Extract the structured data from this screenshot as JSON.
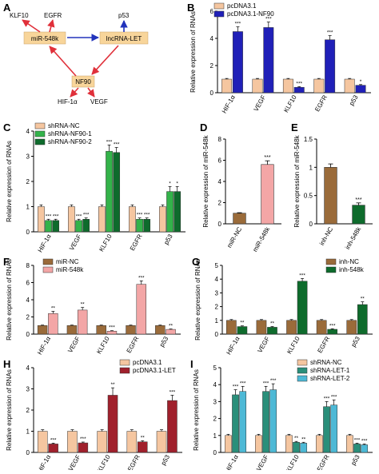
{
  "colors": {
    "beige": "#F5C6A0",
    "navy": "#2020B8",
    "green": "#33B34A",
    "darkgreen": "#0E6B2C",
    "brown": "#9A6B3A",
    "pink": "#F3A6A6",
    "maroon": "#A0202C",
    "teal": "#2A8F7A",
    "lightblue": "#4DB9D6",
    "box": "#F8D59A",
    "arrowRed": "#E0303A",
    "arrowBlue": "#2233BB"
  },
  "diagram": {
    "panel_label": "A",
    "nodes": {
      "mir": "miR-548k",
      "lnc": "lncRNA-LET",
      "nf90": "NF90"
    },
    "targets_top_mir": [
      "KLF10",
      "EGFR"
    ],
    "target_top_lnc": "p53",
    "targets_bottom": [
      "HIF-1α",
      "VEGF"
    ]
  },
  "chart_data": [
    {
      "panel": "B",
      "type": "bar",
      "ylabel": "Relative expression of RNAs",
      "categories": [
        "HIF-1α",
        "VEGF",
        "KLF10",
        "EGFR",
        "p53"
      ],
      "ylim": [
        0,
        6
      ],
      "yticks": [
        0,
        2,
        4,
        6
      ],
      "legend_position": "top-right",
      "series": [
        {
          "name": "pcDNA3.1",
          "color": "beige",
          "values": [
            1.0,
            1.0,
            1.0,
            1.0,
            1.0
          ],
          "err": [
            0.05,
            0.05,
            0.05,
            0.05,
            0.05
          ],
          "sig": [
            "",
            "",
            "",
            "",
            ""
          ]
        },
        {
          "name": "pcDNA3.1-NF90",
          "color": "navy",
          "values": [
            4.5,
            4.8,
            0.4,
            3.9,
            0.55
          ],
          "err": [
            0.35,
            0.4,
            0.05,
            0.3,
            0.05
          ],
          "sig": [
            "***",
            "***",
            "***",
            "***",
            "*"
          ]
        }
      ]
    },
    {
      "panel": "C",
      "type": "bar",
      "ylabel": "Relative expression of RNAs",
      "categories": [
        "HIF-1α",
        "VEGF",
        "KLF10",
        "EGFR",
        "p53"
      ],
      "ylim": [
        0,
        4
      ],
      "yticks": [
        0,
        1,
        2,
        3,
        4
      ],
      "legend_position": "top-left",
      "series": [
        {
          "name": "shRNA-NC",
          "color": "beige",
          "values": [
            1.0,
            1.0,
            1.0,
            1.0,
            1.0
          ],
          "err": [
            0.07,
            0.07,
            0.07,
            0.07,
            0.07
          ],
          "sig": [
            "",
            "",
            "",
            "",
            ""
          ]
        },
        {
          "name": "shRNA-NF90-1",
          "color": "green",
          "values": [
            0.45,
            0.45,
            3.2,
            0.5,
            1.6
          ],
          "err": [
            0.05,
            0.05,
            0.25,
            0.05,
            0.2
          ],
          "sig": [
            "***",
            "***",
            "***",
            "***",
            "*"
          ]
        },
        {
          "name": "shRNA-NF90-2",
          "color": "darkgreen",
          "values": [
            0.45,
            0.5,
            3.15,
            0.5,
            1.6
          ],
          "err": [
            0.05,
            0.05,
            0.2,
            0.05,
            0.2
          ],
          "sig": [
            "***",
            "***",
            "***",
            "***",
            "*"
          ]
        }
      ]
    },
    {
      "panel": "D",
      "type": "bar",
      "ylabel": "Relative expression of miR-548k",
      "categories": [
        "miR-NC",
        "miR-548k"
      ],
      "ylim": [
        0,
        8
      ],
      "yticks": [
        0,
        2,
        4,
        6,
        8
      ],
      "single": true,
      "series": [
        {
          "name": "",
          "colors": [
            "brown",
            "pink"
          ],
          "values": [
            1.0,
            5.6
          ],
          "err": [
            0.05,
            0.35
          ],
          "sig": [
            "",
            "***"
          ]
        }
      ]
    },
    {
      "panel": "E",
      "type": "bar",
      "ylabel": "Relative expression of miR-548k",
      "categories": [
        "inh-NC",
        "inh-548k"
      ],
      "ylim": [
        0,
        1.5
      ],
      "yticks": [
        0,
        0.5,
        1.0,
        1.5
      ],
      "single": true,
      "series": [
        {
          "name": "",
          "colors": [
            "brown",
            "darkgreen"
          ],
          "values": [
            1.0,
            0.33
          ],
          "err": [
            0.06,
            0.04
          ],
          "sig": [
            "",
            "***"
          ]
        }
      ]
    },
    {
      "panel": "F",
      "type": "bar",
      "ylabel": "Relative expression of RNAs",
      "categories": [
        "HIF-1α",
        "VEGF",
        "KLF10",
        "EGFR",
        "p53"
      ],
      "ylim": [
        0,
        8
      ],
      "yticks": [
        0,
        2,
        4,
        6,
        8
      ],
      "legend_position": "top-left",
      "series": [
        {
          "name": "miR-NC",
          "color": "brown",
          "values": [
            1.0,
            1.0,
            1.0,
            1.0,
            1.0
          ],
          "err": [
            0.05,
            0.05,
            0.05,
            0.05,
            0.05
          ],
          "sig": [
            "",
            "",
            "",
            "",
            ""
          ]
        },
        {
          "name": "miR-548k",
          "color": "pink",
          "values": [
            2.4,
            2.8,
            0.35,
            5.8,
            0.55
          ],
          "err": [
            0.25,
            0.3,
            0.05,
            0.4,
            0.05
          ],
          "sig": [
            "**",
            "**",
            "***",
            "***",
            "**"
          ]
        }
      ]
    },
    {
      "panel": "G",
      "type": "bar",
      "ylabel": "Relative expression of RNAs",
      "categories": [
        "HIF-1α",
        "VEGF",
        "KLF10",
        "EGFR",
        "p53"
      ],
      "ylim": [
        0,
        5
      ],
      "yticks": [
        0,
        1,
        2,
        3,
        4,
        5
      ],
      "legend_position": "top-right",
      "series": [
        {
          "name": "inh-NC",
          "color": "brown",
          "values": [
            1.0,
            1.0,
            1.0,
            1.0,
            1.0
          ],
          "err": [
            0.06,
            0.06,
            0.06,
            0.06,
            0.06
          ],
          "sig": [
            "",
            "",
            "",
            "",
            ""
          ]
        },
        {
          "name": "inh-548k",
          "color": "darkgreen",
          "values": [
            0.55,
            0.5,
            3.85,
            0.35,
            2.15
          ],
          "err": [
            0.05,
            0.05,
            0.2,
            0.04,
            0.2
          ],
          "sig": [
            "**",
            "**",
            "***",
            "***",
            "**"
          ]
        }
      ]
    },
    {
      "panel": "H",
      "type": "bar",
      "ylabel": "Relative expression of RNAs",
      "categories": [
        "HIF-1α",
        "VEGF",
        "KLF10",
        "EGFR",
        "p53"
      ],
      "ylim": [
        0,
        4
      ],
      "yticks": [
        0,
        1,
        2,
        3,
        4
      ],
      "legend_position": "top-right",
      "series": [
        {
          "name": "pcDNA3.1",
          "color": "beige",
          "values": [
            1.0,
            1.0,
            1.0,
            1.0,
            1.0
          ],
          "err": [
            0.07,
            0.07,
            0.07,
            0.07,
            0.07
          ],
          "sig": [
            "",
            "",
            "",
            "",
            ""
          ]
        },
        {
          "name": "pcDNA3.1-LET",
          "color": "maroon",
          "values": [
            0.4,
            0.45,
            2.7,
            0.5,
            2.45
          ],
          "err": [
            0.04,
            0.04,
            0.35,
            0.05,
            0.25
          ],
          "sig": [
            "***",
            "***",
            "**",
            "**",
            "***"
          ]
        }
      ]
    },
    {
      "panel": "I",
      "type": "bar",
      "ylabel": "Relative expression of RNAs",
      "categories": [
        "HIF-1α",
        "VEGF",
        "KLF10",
        "EGFR",
        "p53"
      ],
      "ylim": [
        0,
        5
      ],
      "yticks": [
        0,
        1,
        2,
        3,
        4,
        5
      ],
      "legend_position": "top-right",
      "series": [
        {
          "name": "shRNA-NC",
          "color": "beige",
          "values": [
            1.0,
            1.0,
            1.0,
            1.0,
            1.0
          ],
          "err": [
            0.07,
            0.07,
            0.07,
            0.07,
            0.07
          ],
          "sig": [
            "",
            "",
            "",
            "",
            ""
          ]
        },
        {
          "name": "shRNA-LET-1",
          "color": "teal",
          "values": [
            3.4,
            3.6,
            0.6,
            2.7,
            0.5
          ],
          "err": [
            0.3,
            0.3,
            0.05,
            0.3,
            0.05
          ],
          "sig": [
            "***",
            "***",
            "**",
            "***",
            "***"
          ]
        },
        {
          "name": "shRNA-LET-2",
          "color": "lightblue",
          "values": [
            3.6,
            3.7,
            0.55,
            2.8,
            0.45
          ],
          "err": [
            0.3,
            0.35,
            0.05,
            0.3,
            0.05
          ],
          "sig": [
            "***",
            "***",
            "**",
            "***",
            "***"
          ]
        }
      ]
    }
  ]
}
